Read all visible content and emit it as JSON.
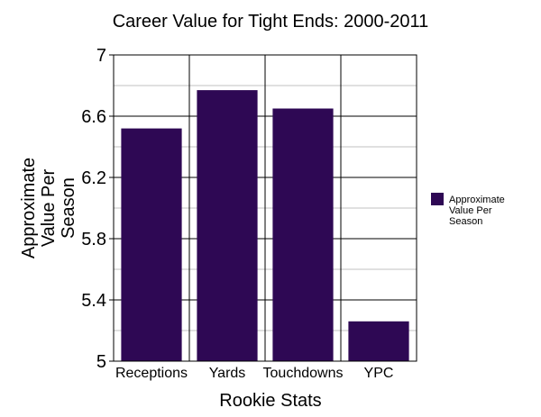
{
  "chart_data": {
    "type": "bar",
    "title": "Career Value for Tight Ends: 2000-2011",
    "xlabel": "Rookie Stats",
    "ylabel": [
      "Approximate",
      "Value Per",
      "Season"
    ],
    "categories": [
      "Receptions",
      "Yards",
      "Touchdowns",
      "YPC"
    ],
    "series": [
      {
        "name": "Approximate Value Per Season",
        "legend_lines": [
          "Approximate",
          "Value Per",
          "Season"
        ],
        "values": [
          6.52,
          6.77,
          6.65,
          5.26
        ]
      }
    ],
    "ylim": [
      5,
      7
    ],
    "yticks": [
      "5",
      "5.4",
      "5.8",
      "6.2",
      "6.6",
      "7"
    ],
    "ytick_values": [
      5,
      5.4,
      5.8,
      6.2,
      6.6,
      7
    ],
    "minor_ygrid": [
      5.2,
      5.6,
      6.0,
      6.4,
      6.8
    ],
    "grid": true,
    "legend_position": "right",
    "bar_color": "#2e0854"
  }
}
